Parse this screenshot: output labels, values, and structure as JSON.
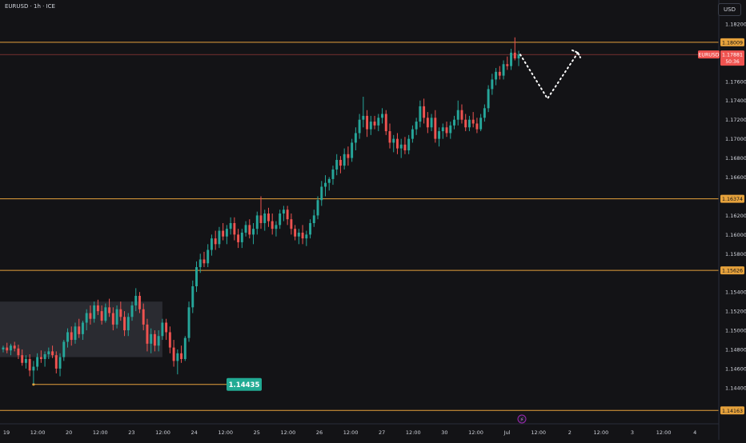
{
  "header": {
    "symbol_label": "EURUSD · 1h · ICE",
    "currency_button": "USD"
  },
  "colors": {
    "up": "#26a69a",
    "down": "#ef5350",
    "level": "#e6a23c",
    "bg": "#131316",
    "axis_text": "#d1d4dc",
    "box": "#2f3036",
    "callout_bg": "#22ab94"
  },
  "chart_data": {
    "type": "candlestick",
    "symbol": "EURUSD",
    "timeframe": "1h",
    "exchange": "ICE",
    "ylim": [
      1.1404,
      1.183
    ],
    "y_ticks": [
      "1.18200",
      "1.17600",
      "1.17400",
      "1.17200",
      "1.17000",
      "1.16800",
      "1.16600",
      "1.16200",
      "1.16000",
      "1.15800",
      "1.15400",
      "1.15200",
      "1.15000",
      "1.14800",
      "1.14600",
      "1.14400"
    ],
    "x_ticks": [
      "19",
      "12:00",
      "20",
      "12:00",
      "23",
      "12:00",
      "24",
      "12:00",
      "25",
      "12:00",
      "26",
      "12:00",
      "27",
      "12:00",
      "30",
      "12:00",
      "Jul",
      "12:00",
      "2",
      "12:00",
      "3",
      "12:00",
      "4"
    ],
    "horizontal_levels": [
      {
        "value": 1.18009,
        "label": "1.18009"
      },
      {
        "value": 1.16374,
        "label": "1.16374"
      },
      {
        "value": 1.15626,
        "label": "1.15626"
      },
      {
        "value": 1.14163,
        "label": "1.14163"
      }
    ],
    "current_price": {
      "symbol": "EURUSD",
      "value": 1.17881,
      "label": "1.17881",
      "countdown": "50:36"
    },
    "marked_low": {
      "value": 1.14435,
      "label": "1.14435"
    },
    "range_box": {
      "y_top": 1.153,
      "y_bottom": 1.1472
    },
    "projection_path": [
      1.1788,
      1.1742,
      1.179
    ],
    "candles": [
      [
        1.148,
        1.1484,
        1.1477,
        1.1482
      ],
      [
        1.1482,
        1.1487,
        1.1476,
        1.1479
      ],
      [
        1.1479,
        1.1486,
        1.1474,
        1.1484
      ],
      [
        1.1484,
        1.1488,
        1.1478,
        1.1481
      ],
      [
        1.1481,
        1.1485,
        1.147,
        1.1474
      ],
      [
        1.1474,
        1.148,
        1.1463,
        1.1466
      ],
      [
        1.1466,
        1.1474,
        1.146,
        1.147
      ],
      [
        1.147,
        1.1475,
        1.1452,
        1.1458
      ],
      [
        1.1458,
        1.1468,
        1.1444,
        1.1462
      ],
      [
        1.1462,
        1.1476,
        1.1458,
        1.1472
      ],
      [
        1.1472,
        1.1479,
        1.1466,
        1.147
      ],
      [
        1.147,
        1.1478,
        1.1462,
        1.1475
      ],
      [
        1.1475,
        1.1482,
        1.147,
        1.1478
      ],
      [
        1.1478,
        1.1484,
        1.1471,
        1.1474
      ],
      [
        1.1474,
        1.1478,
        1.1455,
        1.146
      ],
      [
        1.146,
        1.1476,
        1.1452,
        1.1472
      ],
      [
        1.1472,
        1.149,
        1.1468,
        1.1488
      ],
      [
        1.1488,
        1.1502,
        1.1482,
        1.1498
      ],
      [
        1.1498,
        1.1504,
        1.1484,
        1.149
      ],
      [
        1.149,
        1.1508,
        1.1486,
        1.1504
      ],
      [
        1.1504,
        1.1512,
        1.1492,
        1.1496
      ],
      [
        1.1496,
        1.151,
        1.149,
        1.1508
      ],
      [
        1.1508,
        1.1522,
        1.15,
        1.1518
      ],
      [
        1.1518,
        1.1526,
        1.1506,
        1.1512
      ],
      [
        1.1512,
        1.153,
        1.1508,
        1.1526
      ],
      [
        1.1526,
        1.1532,
        1.1516,
        1.152
      ],
      [
        1.152,
        1.1526,
        1.1506,
        1.151
      ],
      [
        1.151,
        1.1528,
        1.1508,
        1.1524
      ],
      [
        1.1524,
        1.1533,
        1.1514,
        1.1518
      ],
      [
        1.1518,
        1.1524,
        1.15,
        1.1506
      ],
      [
        1.1506,
        1.1526,
        1.1502,
        1.1522
      ],
      [
        1.1522,
        1.153,
        1.151,
        1.1514
      ],
      [
        1.1514,
        1.152,
        1.1494,
        1.15
      ],
      [
        1.15,
        1.1518,
        1.1494,
        1.1514
      ],
      [
        1.1514,
        1.153,
        1.151,
        1.1526
      ],
      [
        1.1526,
        1.1544,
        1.152,
        1.1536
      ],
      [
        1.1536,
        1.154,
        1.1518,
        1.1522
      ],
      [
        1.1522,
        1.1528,
        1.15,
        1.1506
      ],
      [
        1.1506,
        1.1512,
        1.1478,
        1.1486
      ],
      [
        1.1486,
        1.1502,
        1.1476,
        1.1496
      ],
      [
        1.1496,
        1.15,
        1.1478,
        1.1484
      ],
      [
        1.1484,
        1.15,
        1.1478,
        1.1494
      ],
      [
        1.1494,
        1.1512,
        1.149,
        1.1508
      ],
      [
        1.1508,
        1.1512,
        1.149,
        1.1498
      ],
      [
        1.1498,
        1.1504,
        1.1476,
        1.1482
      ],
      [
        1.1482,
        1.149,
        1.1462,
        1.1468
      ],
      [
        1.1468,
        1.148,
        1.1454,
        1.1476
      ],
      [
        1.1476,
        1.1484,
        1.1466,
        1.147
      ],
      [
        1.147,
        1.1494,
        1.1468,
        1.1492
      ],
      [
        1.1492,
        1.153,
        1.1488,
        1.1524
      ],
      [
        1.1524,
        1.1552,
        1.1518,
        1.1546
      ],
      [
        1.1546,
        1.1572,
        1.154,
        1.1566
      ],
      [
        1.1566,
        1.158,
        1.156,
        1.1574
      ],
      [
        1.1574,
        1.1582,
        1.1566,
        1.157
      ],
      [
        1.157,
        1.159,
        1.1566,
        1.1584
      ],
      [
        1.1584,
        1.16,
        1.1578,
        1.1596
      ],
      [
        1.1596,
        1.1604,
        1.1584,
        1.159
      ],
      [
        1.159,
        1.1608,
        1.1586,
        1.1604
      ],
      [
        1.1604,
        1.1612,
        1.1594,
        1.1598
      ],
      [
        1.1598,
        1.161,
        1.159,
        1.1606
      ],
      [
        1.1606,
        1.1618,
        1.16,
        1.1612
      ],
      [
        1.1612,
        1.1618,
        1.1594,
        1.16
      ],
      [
        1.16,
        1.1606,
        1.1586,
        1.1592
      ],
      [
        1.1592,
        1.1606,
        1.1586,
        1.1602
      ],
      [
        1.1602,
        1.1614,
        1.1598,
        1.161
      ],
      [
        1.161,
        1.1616,
        1.1596,
        1.16
      ],
      [
        1.16,
        1.1612,
        1.159,
        1.1606
      ],
      [
        1.1606,
        1.1624,
        1.16,
        1.162
      ],
      [
        1.162,
        1.164,
        1.1606,
        1.1612
      ],
      [
        1.1612,
        1.1626,
        1.1604,
        1.1622
      ],
      [
        1.1622,
        1.1628,
        1.1608,
        1.1614
      ],
      [
        1.1614,
        1.1622,
        1.16,
        1.1606
      ],
      [
        1.1606,
        1.1614,
        1.1598,
        1.161
      ],
      [
        1.161,
        1.1626,
        1.1606,
        1.1622
      ],
      [
        1.1622,
        1.163,
        1.1614,
        1.1626
      ],
      [
        1.1626,
        1.163,
        1.161,
        1.1616
      ],
      [
        1.1616,
        1.1622,
        1.16,
        1.1606
      ],
      [
        1.1606,
        1.161,
        1.1594,
        1.1598
      ],
      [
        1.1598,
        1.1606,
        1.159,
        1.1602
      ],
      [
        1.1602,
        1.161,
        1.159,
        1.1596
      ],
      [
        1.1596,
        1.1604,
        1.1588,
        1.16
      ],
      [
        1.16,
        1.1616,
        1.1596,
        1.1612
      ],
      [
        1.1612,
        1.1626,
        1.1608,
        1.162
      ],
      [
        1.162,
        1.164,
        1.1616,
        1.1636
      ],
      [
        1.1636,
        1.1656,
        1.163,
        1.165
      ],
      [
        1.165,
        1.1662,
        1.164,
        1.1654
      ],
      [
        1.1654,
        1.166,
        1.1646,
        1.1658
      ],
      [
        1.1658,
        1.1672,
        1.1652,
        1.1668
      ],
      [
        1.1668,
        1.1684,
        1.1662,
        1.1678
      ],
      [
        1.1678,
        1.1682,
        1.1664,
        1.1672
      ],
      [
        1.1672,
        1.169,
        1.1668,
        1.1684
      ],
      [
        1.1684,
        1.1692,
        1.1672,
        1.168
      ],
      [
        1.168,
        1.17,
        1.1676,
        1.1696
      ],
      [
        1.1696,
        1.1712,
        1.1688,
        1.1706
      ],
      [
        1.1706,
        1.1726,
        1.17,
        1.172
      ],
      [
        1.172,
        1.1744,
        1.1712,
        1.1724
      ],
      [
        1.1724,
        1.173,
        1.1702,
        1.171
      ],
      [
        1.171,
        1.1724,
        1.1704,
        1.1718
      ],
      [
        1.1718,
        1.1724,
        1.171,
        1.1714
      ],
      [
        1.1714,
        1.1726,
        1.1708,
        1.1722
      ],
      [
        1.1722,
        1.1732,
        1.1716,
        1.1726
      ],
      [
        1.1726,
        1.173,
        1.1704,
        1.1708
      ],
      [
        1.1708,
        1.1716,
        1.169,
        1.1696
      ],
      [
        1.1696,
        1.1704,
        1.1686,
        1.17
      ],
      [
        1.17,
        1.1706,
        1.1684,
        1.169
      ],
      [
        1.169,
        1.17,
        1.168,
        1.1694
      ],
      [
        1.1694,
        1.1702,
        1.1684,
        1.1688
      ],
      [
        1.1688,
        1.1704,
        1.1684,
        1.17
      ],
      [
        1.17,
        1.1714,
        1.1696,
        1.171
      ],
      [
        1.171,
        1.1722,
        1.1704,
        1.1718
      ],
      [
        1.1718,
        1.174,
        1.1712,
        1.1734
      ],
      [
        1.1734,
        1.1742,
        1.1716,
        1.1722
      ],
      [
        1.1722,
        1.1728,
        1.1706,
        1.1712
      ],
      [
        1.1712,
        1.1726,
        1.1708,
        1.1722
      ],
      [
        1.1722,
        1.173,
        1.1696,
        1.17
      ],
      [
        1.17,
        1.1712,
        1.1692,
        1.1708
      ],
      [
        1.1708,
        1.1716,
        1.17,
        1.1712
      ],
      [
        1.1712,
        1.1718,
        1.1702,
        1.1706
      ],
      [
        1.1706,
        1.1718,
        1.17,
        1.1714
      ],
      [
        1.1714,
        1.1724,
        1.171,
        1.172
      ],
      [
        1.172,
        1.174,
        1.1714,
        1.173
      ],
      [
        1.173,
        1.1736,
        1.1716,
        1.172
      ],
      [
        1.172,
        1.1726,
        1.1708,
        1.1712
      ],
      [
        1.1712,
        1.1724,
        1.1708,
        1.172
      ],
      [
        1.172,
        1.1728,
        1.1712,
        1.1716
      ],
      [
        1.1716,
        1.1722,
        1.1706,
        1.171
      ],
      [
        1.171,
        1.1726,
        1.1708,
        1.1722
      ],
      [
        1.1722,
        1.1736,
        1.1718,
        1.1732
      ],
      [
        1.1732,
        1.1756,
        1.1728,
        1.1752
      ],
      [
        1.1752,
        1.1768,
        1.1746,
        1.1762
      ],
      [
        1.1762,
        1.1774,
        1.1756,
        1.177
      ],
      [
        1.177,
        1.1776,
        1.1762,
        1.1766
      ],
      [
        1.1766,
        1.1782,
        1.1762,
        1.1778
      ],
      [
        1.1778,
        1.1786,
        1.1772,
        1.1776
      ],
      [
        1.1776,
        1.1794,
        1.1772,
        1.179
      ],
      [
        1.179,
        1.1806,
        1.1782,
        1.1784
      ],
      [
        1.1784,
        1.1792,
        1.1776,
        1.1788
      ]
    ]
  },
  "callout": {
    "label": "1.14435"
  },
  "event_marker": {
    "icon": "lightning-icon",
    "glyph": "⚡"
  }
}
